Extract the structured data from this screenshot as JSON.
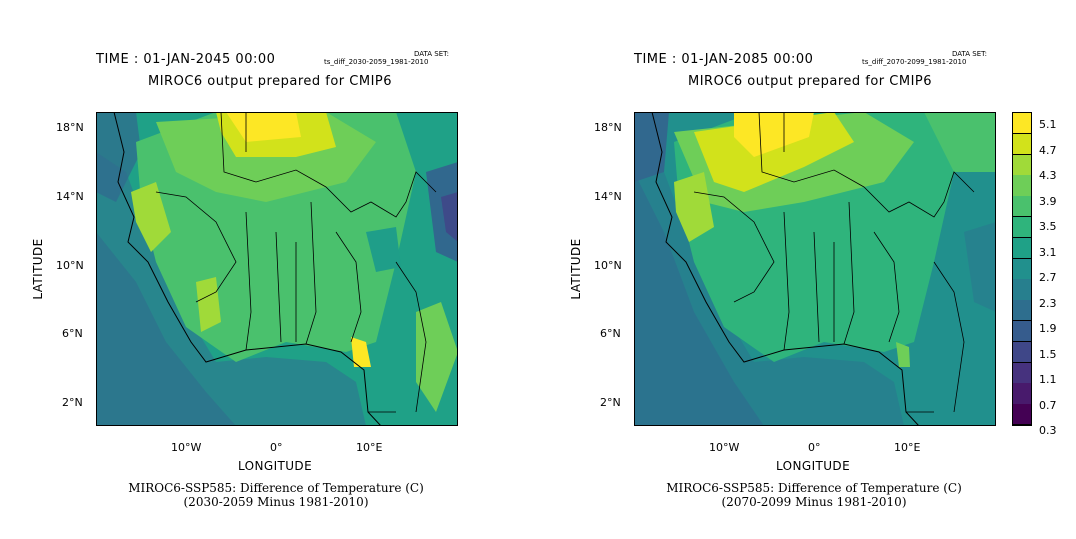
{
  "colors": {
    "viridis": [
      "#440154",
      "#482777",
      "#3e4a89",
      "#31688e",
      "#26828e",
      "#1f9e89",
      "#35b779",
      "#6ece58",
      "#b5de2b",
      "#fde725"
    ],
    "border": "#000000",
    "background": "#ffffff"
  },
  "panels": [
    {
      "time_label": "TIME : 01-JAN-2045 00:00",
      "dataset_title": "DATA SET:",
      "dataset_name": "ts_diff_2030-2059_1981-2010",
      "subtitle": "MIROC6 output prepared for CMIP6",
      "y_axis_label": "LATITUDE",
      "x_axis_label": "LONGITUDE",
      "lat_ticks": [
        "18°N",
        "14°N",
        "10°N",
        "6°N",
        "2°N"
      ],
      "lon_ticks": [
        "10°W",
        "0°",
        "10°E"
      ],
      "caption_line1": "MIROC6-SSP585: Difference of Temperature (C)",
      "caption_line2": "(2030-2059 Minus 1981-2010)"
    },
    {
      "time_label": "TIME : 01-JAN-2085 00:00",
      "dataset_title": "DATA SET:",
      "dataset_name": "ts_diff_2070-2099_1981-2010",
      "subtitle": "MIROC6 output prepared for CMIP6",
      "y_axis_label": "LATITUDE",
      "x_axis_label": "LONGITUDE",
      "lat_ticks": [
        "18°N",
        "14°N",
        "10°N",
        "6°N",
        "2°N"
      ],
      "lon_ticks": [
        "10°W",
        "0°",
        "10°E"
      ],
      "caption_line1": "MIROC6-SSP585: Difference of Temperature (C)",
      "caption_line2": "(2070-2099 Minus 1981-2010)"
    }
  ],
  "colorbar": {
    "labels": [
      "5.1",
      "4.7",
      "4.3",
      "3.9",
      "3.5",
      "3.1",
      "2.7",
      "2.3",
      "1.9",
      "1.5",
      "1.1",
      "0.7",
      "0.3"
    ],
    "colors": [
      "#fde725",
      "#d2e21b",
      "#a0da39",
      "#6ece58",
      "#4ac16d",
      "#2fb47c",
      "#1fa187",
      "#21908d",
      "#277f8e",
      "#2e6e8e",
      "#365c8d",
      "#3f4788",
      "#46327e",
      "#481a6c",
      "#440154"
    ]
  }
}
